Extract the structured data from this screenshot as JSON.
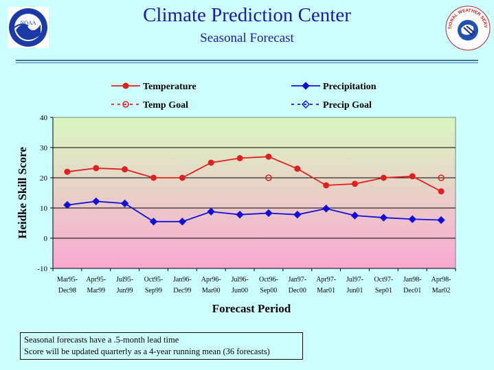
{
  "header": {
    "title": "Climate Prediction Center",
    "subtitle": "Seasonal Forecast"
  },
  "logos": {
    "left": {
      "icon": "noaa-logo-icon",
      "text": "NOAA"
    },
    "right": {
      "icon": "nws-logo-icon",
      "text": "NATIONAL WEATHER SERVICE"
    }
  },
  "colors": {
    "temperature": "#e02020",
    "precipitation": "#1010d8",
    "plot_top": "#d8f8c0",
    "plot_bottom": "#f8a8d0"
  },
  "chart_data": {
    "type": "line",
    "xlabel": "Forecast Period",
    "ylabel": "Heidke Skill Score",
    "ylim": [
      -10,
      40
    ],
    "yticks": [
      -10,
      0,
      10,
      20,
      30,
      40
    ],
    "grid": "horizontal",
    "legend_position": "top",
    "categories": [
      [
        "Mar95-",
        "Dec98"
      ],
      [
        "Apr95-",
        "Mar99"
      ],
      [
        "Jul95-",
        "Jun99"
      ],
      [
        "Oct95-",
        "Sep99"
      ],
      [
        "Jan96-",
        "Dec99"
      ],
      [
        "Apr96-",
        "Mar00"
      ],
      [
        "Jul96-",
        "Jun00"
      ],
      [
        "Oct96-",
        "Sep00"
      ],
      [
        "Jan97-",
        "Dec00"
      ],
      [
        "Apr97-",
        "Mar01"
      ],
      [
        "Jul97-",
        "Jun01"
      ],
      [
        "Oct97-",
        "Sep01"
      ],
      [
        "Jan98-",
        "Dec01"
      ],
      [
        "Apr98-",
        "Mar02"
      ]
    ],
    "series": [
      {
        "name": "Temperature",
        "color": "#e02020",
        "marker": "circle",
        "values": [
          22,
          23.2,
          22.8,
          20,
          20,
          25,
          26.5,
          27,
          23,
          17.5,
          18,
          20,
          20.5,
          15.5
        ]
      },
      {
        "name": "Precipitation",
        "color": "#1010d8",
        "marker": "diamond",
        "values": [
          11,
          12.2,
          11.5,
          5.5,
          5.5,
          8.8,
          7.8,
          8.3,
          7.8,
          9.8,
          7.5,
          6.8,
          6.3,
          6
        ]
      }
    ],
    "goals": [
      {
        "name": "Temp Goal",
        "color": "#e02020",
        "marker": "open-circle",
        "points": [
          {
            "index": 7,
            "value": 20
          },
          {
            "index": 13,
            "value": 20
          }
        ]
      },
      {
        "name": "Precip Goal",
        "color": "#1010d8",
        "marker": "open-diamond",
        "points": []
      }
    ]
  },
  "notes": {
    "line1": "Seasonal forecasts have a .5-month lead time",
    "line2": "Score will be updated quarterly as a 4-year running mean (36 forecasts)"
  }
}
